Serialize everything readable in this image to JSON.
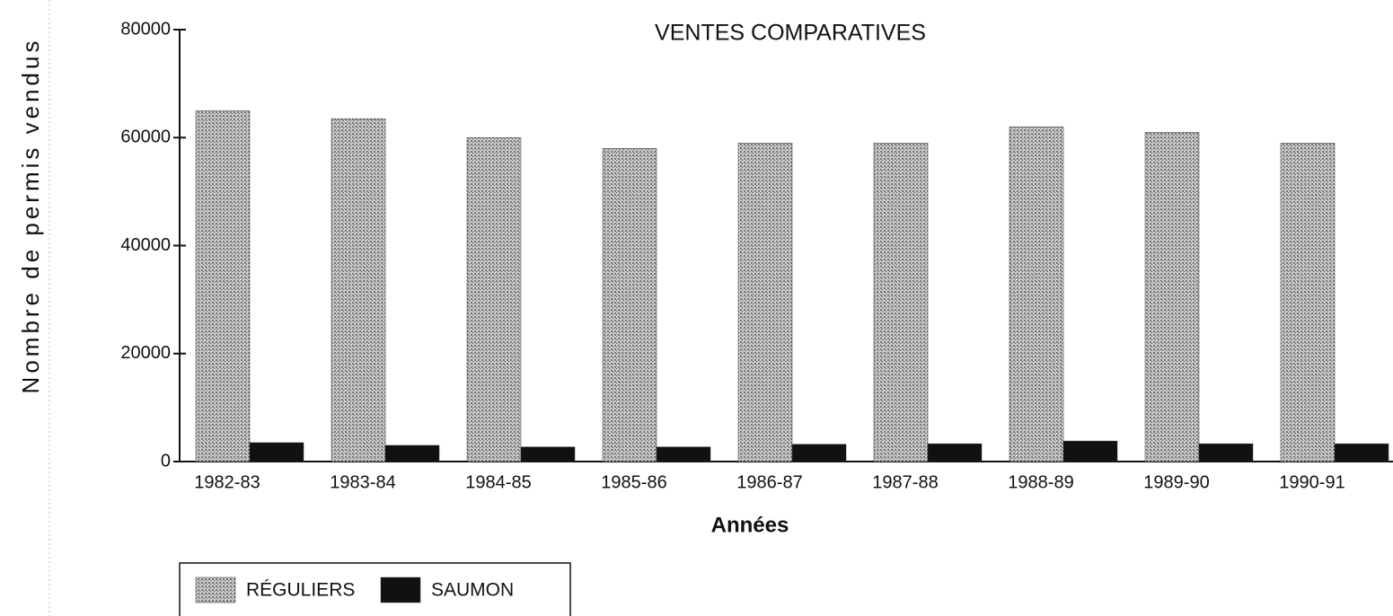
{
  "chart_data": {
    "type": "bar",
    "title": "VENTES COMPARATIVES",
    "x_label": "Années",
    "y_label": "Nombre de permis vendus",
    "categories": [
      "1982-83",
      "1983-84",
      "1984-85",
      "1985-86",
      "1986-87",
      "1987-88",
      "1988-89",
      "1989-90",
      "1990-91"
    ],
    "series": [
      {
        "name": "RÉGULIERS",
        "color": "#a8a8a8",
        "values": [
          65000,
          63500,
          60000,
          58000,
          59000,
          59000,
          62000,
          61000,
          59000
        ]
      },
      {
        "name": "SAUMON",
        "color": "#111111",
        "values": [
          3500,
          3000,
          2700,
          2700,
          3200,
          3300,
          3800,
          3300,
          3300
        ]
      }
    ],
    "ylim": [
      0,
      80000
    ],
    "yticks": [
      0,
      20000,
      40000,
      60000,
      80000
    ],
    "grid": false,
    "legend": "bottom-left"
  }
}
